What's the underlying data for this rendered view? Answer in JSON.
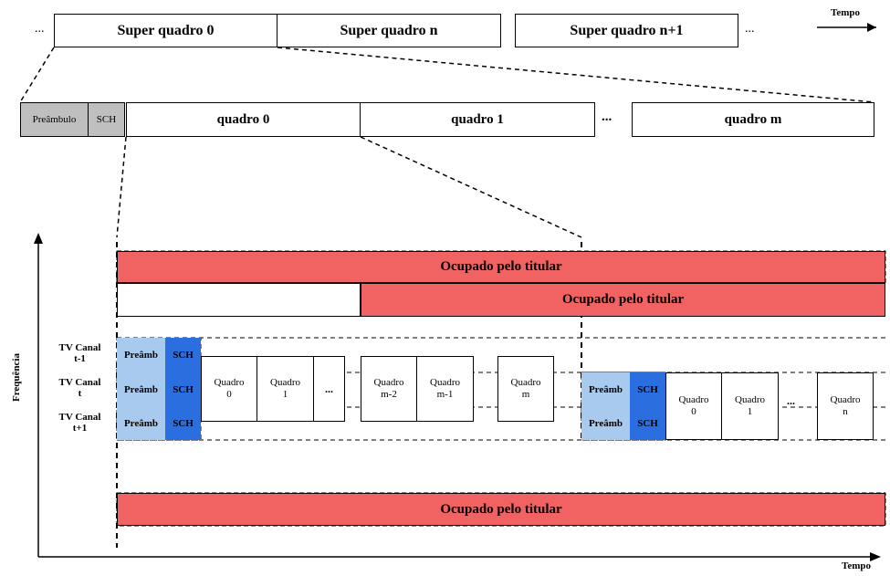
{
  "top_axis_label": "Tempo",
  "bottom_axis_label": "Tempo",
  "freq_axis_label": "Frequência",
  "superframes": [
    {
      "label": "Super quadro 0"
    },
    {
      "label": "Super quadro n"
    },
    {
      "label": "Super quadro n+1"
    }
  ],
  "detail_row": {
    "preamble": "Preâmbulo",
    "sch": "SCH",
    "frames": [
      {
        "label": "quadro 0"
      },
      {
        "label": "quadro 1"
      },
      {
        "label": "quadro m"
      }
    ],
    "ellipsis": "..."
  },
  "occupied_label": "Ocupado pelo titular",
  "tv_channels": [
    {
      "label": "TV Canal t-1"
    },
    {
      "label": "TV Canal t"
    },
    {
      "label": "TV Canal t+1"
    }
  ],
  "grid": {
    "preamb": "Preâmb",
    "sch": "SCH",
    "quadros_a": [
      "Quadro 0",
      "Quadro 1",
      "...",
      "Quadro m-2",
      "Quadro m-1",
      "Quadro m"
    ],
    "quadros_b": [
      "Quadro 0",
      "Quadro 1",
      "Quadro n"
    ]
  },
  "ellipsis_top": "...",
  "colors": {
    "red": "#f16363",
    "light_blue": "#a8caef",
    "blue": "#2a6ee0",
    "gray": "#bfbfbf",
    "black": "#000000",
    "white": "#ffffff"
  },
  "fonts": {
    "super_title_size": 16,
    "detail_title_size": 15,
    "occupied_size": 15,
    "small_size": 11,
    "tiny_size": 10,
    "axis_size": 11
  }
}
